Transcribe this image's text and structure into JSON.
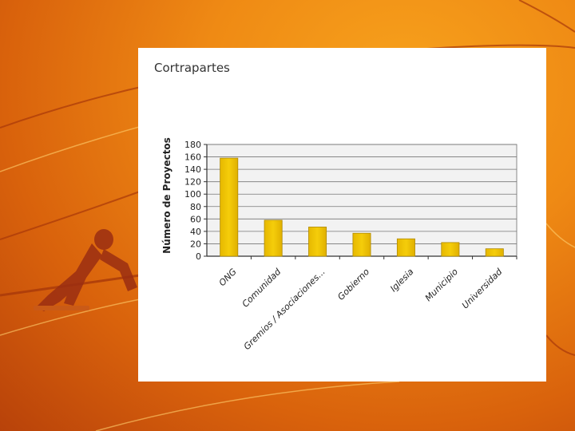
{
  "chart_data": {
    "type": "bar",
    "title": "Cortrapartes",
    "ylabel": "Número de Proyectos",
    "xlabel": "",
    "categories": [
      "ONG",
      "Comunidad",
      "Gremios / Asociaciones...",
      "Gobierno",
      "Iglesia",
      "Municipio",
      "Universidad"
    ],
    "values": [
      158,
      58,
      47,
      37,
      28,
      22,
      12
    ],
    "ylim": [
      0,
      180
    ],
    "yticks": [
      0,
      20,
      40,
      60,
      80,
      100,
      120,
      140,
      160,
      180
    ],
    "grid": true,
    "bar_color": "#f5cd0a",
    "plot_bg": "#f2f2f2"
  }
}
